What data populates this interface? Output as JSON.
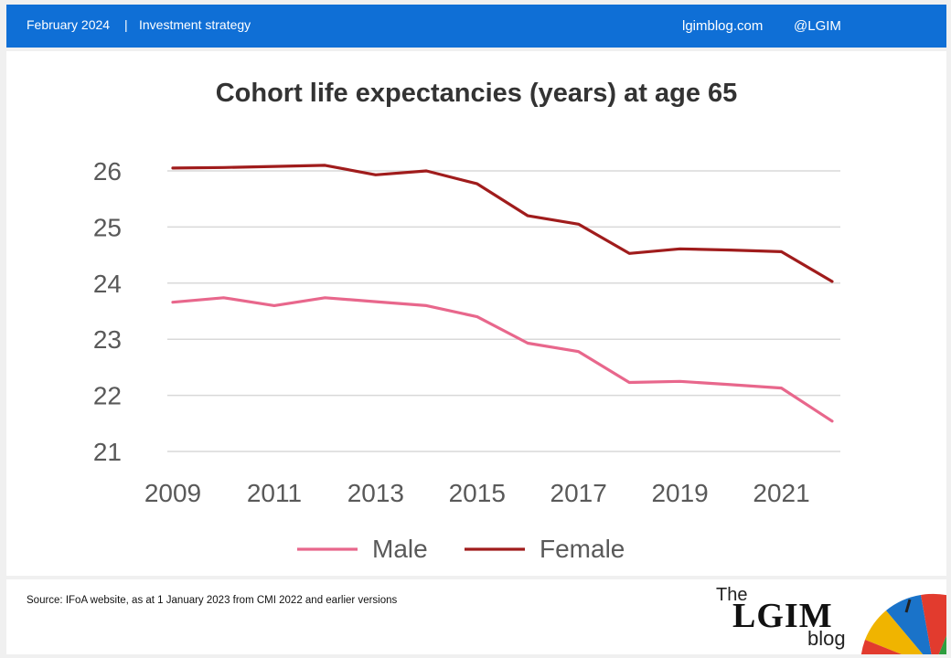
{
  "header": {
    "date": "February 2024",
    "separator": "|",
    "topic": "Investment strategy",
    "site": "lgimblog.com",
    "handle": "@LGIM"
  },
  "footer": {
    "source": "Source: IFoA website, as at 1 January 2023 from CMI  2022 and earlier versions",
    "brand": {
      "the": "The",
      "name": "LGIM",
      "blog": "blog"
    }
  },
  "colors": {
    "header_bg": "#0f6fd6",
    "male": "#e8678c",
    "female": "#a01c1c",
    "grid": "#d9d9d9",
    "tick_text": "#595959"
  },
  "chart_data": {
    "type": "line",
    "title": "Cohort life expectancies (years) at age 65",
    "x": [
      2009,
      2010,
      2011,
      2012,
      2013,
      2014,
      2015,
      2016,
      2017,
      2018,
      2019,
      2020,
      2021,
      2022
    ],
    "x_tick_labels": [
      "2009",
      "2011",
      "2013",
      "2015",
      "2017",
      "2019",
      "2021"
    ],
    "y_tick_labels": [
      "21",
      "22",
      "23",
      "24",
      "25",
      "26"
    ],
    "ylim": [
      21,
      26
    ],
    "grid": true,
    "legend_position": "bottom",
    "series": [
      {
        "name": "Male",
        "values": [
          23.66,
          23.74,
          23.6,
          23.74,
          23.67,
          23.6,
          23.4,
          22.93,
          22.78,
          22.23,
          22.25,
          22.19,
          22.13,
          21.54
        ]
      },
      {
        "name": "Female",
        "values": [
          26.05,
          26.06,
          26.08,
          26.1,
          25.93,
          26.0,
          25.77,
          25.2,
          25.05,
          24.53,
          24.61,
          24.59,
          24.56,
          24.03
        ]
      }
    ]
  }
}
